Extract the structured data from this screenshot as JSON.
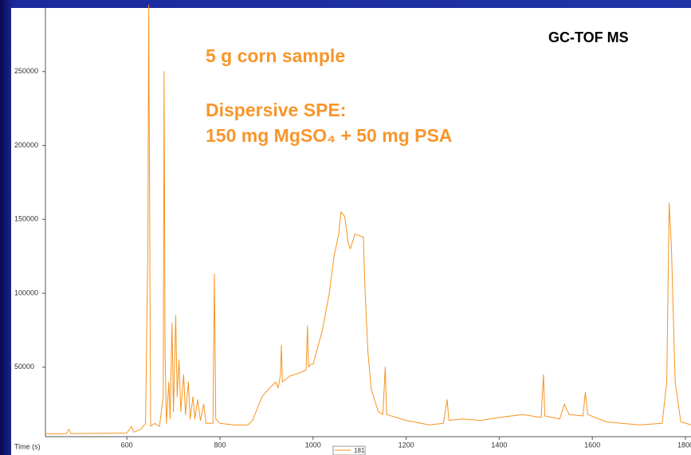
{
  "chart_data": {
    "type": "line",
    "annotations": [
      "5 g corn sample",
      "Dispersive SPE:",
      "150 mg MgSO₄ + 50 mg PSA",
      "GC-TOF MS"
    ],
    "xlabel": "Time (s)",
    "x": [
      425,
      470,
      475,
      480,
      600,
      610,
      615,
      630,
      640,
      645,
      647,
      649,
      651,
      660,
      670,
      678,
      680,
      682,
      685,
      690,
      693,
      697,
      700,
      705,
      708,
      712,
      716,
      722,
      726,
      732,
      736,
      742,
      746,
      752,
      758,
      765,
      770,
      785,
      788,
      791,
      800,
      830,
      860,
      870,
      890,
      910,
      920,
      925,
      930,
      932,
      934,
      950,
      970,
      985,
      988,
      990,
      995,
      1000,
      1020,
      1035,
      1045,
      1055,
      1060,
      1068,
      1075,
      1080,
      1090,
      1100,
      1108,
      1112,
      1118,
      1125,
      1140,
      1150,
      1155,
      1158,
      1200,
      1250,
      1280,
      1288,
      1292,
      1320,
      1360,
      1400,
      1450,
      1490,
      1495,
      1498,
      1530,
      1540,
      1550,
      1580,
      1585,
      1590,
      1630,
      1700,
      1750,
      1760,
      1765,
      1770,
      1778,
      1790,
      1812
    ],
    "series": [
      {
        "name": "181",
        "color": "#f7941d",
        "values": [
          5000,
          5000,
          8000,
          5000,
          5500,
          10000,
          6000,
          8000,
          12000,
          130000,
          295000,
          150000,
          10000,
          12000,
          10000,
          30000,
          250000,
          60000,
          12000,
          40000,
          15000,
          80000,
          20000,
          85000,
          30000,
          55000,
          20000,
          45000,
          18000,
          40000,
          15000,
          30000,
          15000,
          28000,
          14000,
          25000,
          12000,
          12000,
          113000,
          15000,
          12000,
          11000,
          11000,
          14000,
          30000,
          37000,
          40000,
          36000,
          45000,
          65000,
          40000,
          44000,
          46000,
          48000,
          78000,
          50000,
          52000,
          52000,
          75000,
          100000,
          125000,
          140000,
          155000,
          152000,
          135000,
          130000,
          140000,
          139000,
          138000,
          100000,
          60000,
          35000,
          20000,
          18000,
          50000,
          18000,
          14000,
          11000,
          12000,
          28000,
          14000,
          15000,
          14000,
          16000,
          18000,
          16000,
          45000,
          17000,
          15000,
          25000,
          18000,
          17000,
          33000,
          18000,
          13000,
          11000,
          12000,
          40000,
          161000,
          130000,
          40000,
          13000,
          11000
        ]
      }
    ],
    "xlim": [
      425,
      1812
    ],
    "xticks": [
      600,
      800,
      1000,
      1200,
      1400,
      1600,
      1800
    ],
    "ylim": [
      3000,
      293000
    ],
    "yticks": [
      50000,
      100000,
      150000,
      200000,
      250000
    ]
  }
}
